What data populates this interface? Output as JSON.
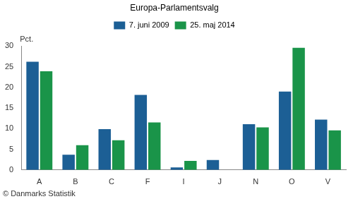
{
  "chart_data": {
    "type": "bar",
    "title": "Europa-Parlamentsvalg",
    "y_label": "Pct.",
    "source": "© Danmarks Statistik",
    "categories": [
      "A",
      "B",
      "C",
      "F",
      "I",
      "J",
      "N",
      "O",
      "V"
    ],
    "series": [
      {
        "name": "7. juni 2009",
        "color": "#1c5f95",
        "values": [
          26.2,
          3.7,
          9.9,
          18.2,
          0.6,
          2.4,
          11.1,
          19.0,
          12.2
        ]
      },
      {
        "name": "25. maj 2014",
        "color": "#1a9449",
        "values": [
          23.9,
          6.0,
          7.2,
          11.5,
          2.2,
          null,
          10.3,
          29.6,
          9.6
        ]
      }
    ],
    "ylim": [
      0,
      30
    ],
    "yticks": [
      0,
      5,
      10,
      15,
      20,
      25,
      30
    ],
    "grid": false,
    "legend": "top"
  }
}
